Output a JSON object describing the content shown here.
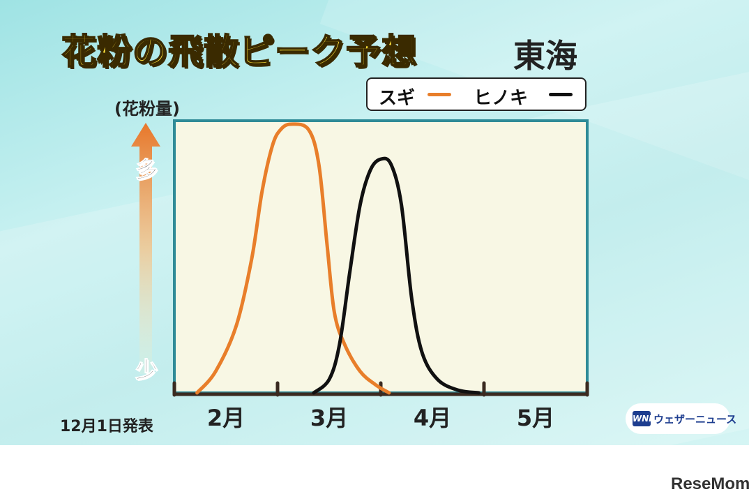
{
  "title": "花粉の飛散ピーク予想",
  "region": "東海",
  "legend": {
    "sugi": "スギ",
    "hinoki": "ヒノキ"
  },
  "y_axis": {
    "label": "(花粉量)",
    "high": "多",
    "low": "少"
  },
  "announcement": "12月1日発表",
  "brand": {
    "logo": "WNI",
    "name": "ウェザーニュース"
  },
  "watermark": "ReseMom",
  "colors": {
    "sugi": "#e87e2a",
    "hinoki": "#111111",
    "frame": "#2f8b97",
    "plot_bg": "#f8f7e4"
  },
  "chart_data": {
    "type": "line",
    "title": "花粉の飛散ピーク予想",
    "ylabel": "(花粉量)",
    "xlabel": "",
    "x_tick_labels": [
      "2月",
      "3月",
      "4月",
      "5月"
    ],
    "x_unit": "month",
    "xlim": [
      1.75,
      5.75
    ],
    "ylim": [
      0,
      100
    ],
    "y_levels": [
      "少",
      "多"
    ],
    "legend_position": "top-right",
    "grid": false,
    "series": [
      {
        "name": "スギ",
        "color": "#e87e2a",
        "x": [
          1.97,
          2.15,
          2.35,
          2.5,
          2.6,
          2.7,
          2.78,
          2.88,
          3.05,
          3.15,
          3.23,
          3.3,
          3.4,
          3.55,
          3.7,
          3.83
        ],
        "y": [
          0,
          8,
          25,
          50,
          75,
          92,
          98,
          100,
          98,
          85,
          55,
          30,
          18,
          8,
          3,
          0
        ]
      },
      {
        "name": "ヒノキ",
        "color": "#111111",
        "x": [
          3.1,
          3.25,
          3.35,
          3.45,
          3.55,
          3.65,
          3.75,
          3.85,
          3.95,
          4.05,
          4.15,
          4.3,
          4.5,
          4.7
        ],
        "y": [
          0,
          5,
          18,
          45,
          70,
          83,
          87,
          85,
          70,
          35,
          15,
          5,
          1,
          0
        ]
      }
    ]
  }
}
